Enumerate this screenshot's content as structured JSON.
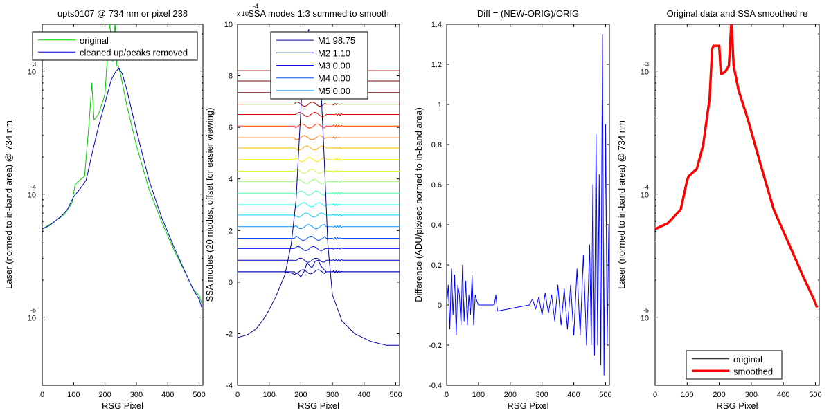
{
  "chart_data": [
    {
      "type": "line",
      "title": "upts0107 @ 734 nm or pixel 238",
      "xlabel": "RSG Pixel",
      "ylabel": "Laser (normed to in-band area) @ 734 nm",
      "xlim": [
        0,
        512
      ],
      "ylim": [
        2.8e-06,
        0.0024
      ],
      "yscale": "log",
      "x_ticks": [
        0,
        100,
        200,
        300,
        400,
        500
      ],
      "y_ticks": [
        {
          "value": 1e-05,
          "base": "10",
          "exp": "-5"
        },
        {
          "value": 0.0001,
          "base": "10",
          "exp": "-4"
        },
        {
          "value": 0.001,
          "base": "10",
          "exp": "-3"
        }
      ],
      "legend": {
        "position": "top",
        "entries": [
          "original",
          "cleaned up/peaks removed"
        ]
      },
      "series": [
        {
          "name": "original",
          "color": "#00cc00",
          "x": [
            0,
            40,
            70,
            95,
            105,
            120,
            135,
            150,
            158,
            165,
            180,
            200,
            215,
            225,
            232,
            238,
            242,
            250,
            270,
            300,
            340,
            380,
            420,
            460,
            480,
            500,
            508
          ],
          "y": [
            5.2e-05,
            6e-05,
            6.8e-05,
            8.5e-05,
            0.00012,
            0.00013,
            0.00014,
            0.0004,
            0.0008,
            0.0004,
            0.00045,
            0.00065,
            0.0025,
            0.0012,
            0.0025,
            0.0011,
            0.0011,
            0.00093,
            0.00052,
            0.00025,
            0.00011,
            6e-05,
            3.5e-05,
            2.2e-05,
            1.7e-05,
            1.5e-05,
            1.3e-05
          ]
        },
        {
          "name": "cleaned up/peaks removed",
          "color": "#0000cc",
          "x": [
            0,
            20,
            40,
            60,
            80,
            100,
            120,
            140,
            160,
            180,
            200,
            220,
            235,
            245,
            255,
            270,
            300,
            340,
            380,
            420,
            460,
            480,
            500,
            508
          ],
          "y": [
            5.2e-05,
            5.5e-05,
            6e-05,
            6.6e-05,
            7.5e-05,
            9.5e-05,
            0.00011,
            0.00013,
            0.00022,
            0.00036,
            0.00055,
            0.00085,
            0.001,
            0.00105,
            0.00095,
            0.0007,
            0.00033,
            0.00013,
            6.5e-05,
            3.7e-05,
            2.2e-05,
            1.7e-05,
            1.4e-05,
            1.2e-05
          ]
        }
      ]
    },
    {
      "type": "line",
      "title": "SSA modes 1:3 summed to smooth",
      "scale_label": {
        "base": "x 10",
        "exp": "-4"
      },
      "xlabel": "RSG Pixel",
      "ylabel": "SSA modes (20 modes, offset for easier viewing)",
      "xlim": [
        0,
        512
      ],
      "ylim": [
        -4,
        10
      ],
      "x_ticks": [
        0,
        100,
        200,
        300,
        400,
        500
      ],
      "y_ticks": [
        -4,
        -2,
        0,
        2,
        4,
        6,
        8,
        10
      ],
      "legend": {
        "position": "top",
        "entries": [
          "M1 98.75",
          "M2 1.10",
          "M3 0.00",
          "M4 0.00",
          "M5 0.00"
        ]
      },
      "mode_colors": [
        "#00008f",
        "#0000cc",
        "#0010ff",
        "#0050ff",
        "#0090ff",
        "#00d0ff",
        "#10ffef",
        "#50ffaf",
        "#90ff6f",
        "#d0ff2f",
        "#ffef00",
        "#ffb000",
        "#ff7000",
        "#ff3000",
        "#ef0000",
        "#af0000",
        "#800000",
        "#800000",
        "#800000"
      ],
      "mode_offsets": [
        0.4,
        0.85,
        1.3,
        1.7,
        2.15,
        2.6,
        3.0,
        3.45,
        3.9,
        4.3,
        4.75,
        5.2,
        5.6,
        6.05,
        6.5,
        6.9,
        7.35,
        7.8,
        8.2
      ],
      "series": [
        {
          "name": "M1 98.75",
          "color": "#00008f",
          "x": [
            0,
            30,
            60,
            90,
            120,
            150,
            170,
            185,
            195,
            205,
            215,
            225,
            235,
            245,
            255,
            265,
            275,
            285,
            300,
            330,
            370,
            420,
            470,
            510
          ],
          "y": [
            -2.15,
            -2.05,
            -1.8,
            -1.3,
            -0.6,
            0.3,
            1.5,
            3.2,
            5.5,
            7.8,
            9.3,
            9.8,
            9.6,
            9.0,
            8.5,
            7.2,
            4.5,
            1.5,
            -0.5,
            -1.5,
            -2.0,
            -2.3,
            -2.45,
            -2.45
          ]
        },
        {
          "name": "M2 1.10",
          "color": "#0000cc",
          "x": [
            0,
            100,
            150,
            170,
            180,
            190,
            200,
            210,
            220,
            235,
            245,
            255,
            265,
            280,
            320,
            400,
            510
          ],
          "y": [
            0.4,
            0.4,
            0.4,
            0.35,
            0.3,
            0.35,
            0.2,
            0.4,
            0.75,
            0.55,
            0.8,
            0.85,
            0.6,
            0.4,
            0.4,
            0.4,
            0.4
          ]
        }
      ]
    },
    {
      "type": "line",
      "title": "Diff = (NEW-ORIG)/ORIG",
      "xlabel": "RSG Pixel",
      "ylabel": "Difference (ADU/pix/sec normed to in-band area)",
      "xlim": [
        0,
        512
      ],
      "ylim": [
        -0.4,
        1.4
      ],
      "x_ticks": [
        0,
        100,
        200,
        300,
        400,
        500
      ],
      "y_ticks": [
        -0.4,
        -0.2,
        0,
        0.2,
        0.4,
        0.6,
        0.8,
        1,
        1.2,
        1.4
      ],
      "series": [
        {
          "name": "",
          "color": "#0000ff",
          "x": [
            0,
            5,
            10,
            15,
            20,
            25,
            30,
            35,
            40,
            45,
            50,
            55,
            60,
            65,
            70,
            75,
            80,
            85,
            90,
            95,
            100,
            150,
            155,
            160,
            260,
            270,
            280,
            290,
            300,
            310,
            320,
            330,
            340,
            350,
            360,
            370,
            380,
            390,
            400,
            410,
            420,
            430,
            440,
            450,
            455,
            460,
            465,
            470,
            475,
            480,
            485,
            490,
            495,
            500,
            505,
            510
          ],
          "y": [
            0,
            0.1,
            -0.12,
            0.18,
            -0.05,
            0.15,
            -0.15,
            0.1,
            0.05,
            -0.1,
            0.2,
            -0.08,
            0.12,
            -0.1,
            0.05,
            -0.05,
            0.15,
            -0.1,
            0.05,
            0.02,
            0,
            0,
            0.05,
            -0.03,
            0,
            0.03,
            -0.02,
            0.04,
            -0.05,
            0.06,
            -0.04,
            0.05,
            -0.08,
            0.1,
            -0.1,
            0.08,
            -0.12,
            0.1,
            -0.15,
            0.18,
            -0.15,
            0.25,
            -0.2,
            0.3,
            -0.2,
            0.6,
            -0.25,
            0.85,
            -0.2,
            0.65,
            -0.3,
            1.35,
            -0.35,
            0.9,
            -0.2,
            0.4
          ]
        }
      ]
    },
    {
      "type": "line",
      "title": "Original data and SSA smoothed re",
      "xlabel": "RSG Pixel",
      "ylabel": "Laser (normed to in-band area) @ 734 nm",
      "xlim": [
        0,
        512
      ],
      "ylim": [
        2.8e-06,
        0.0024
      ],
      "yscale": "log",
      "x_ticks": [
        0,
        100,
        200,
        300,
        400,
        500
      ],
      "y_ticks": [
        {
          "value": 1e-05,
          "base": "10",
          "exp": "-5"
        },
        {
          "value": 0.0001,
          "base": "10",
          "exp": "-4"
        },
        {
          "value": 0.001,
          "base": "10",
          "exp": "-3"
        }
      ],
      "legend": {
        "position": "bottom",
        "entries": [
          "original",
          "smoothed"
        ]
      },
      "series": [
        {
          "name": "original",
          "color": "#000000",
          "x": [
            0,
            40,
            80,
            100,
            105,
            130,
            150,
            170,
            178,
            182,
            200,
            205,
            210,
            220,
            230,
            238,
            245,
            260,
            290,
            330,
            370,
            420,
            460,
            480,
            495,
            505
          ],
          "y": [
            5.2e-05,
            5.8e-05,
            7.5e-05,
            0.00013,
            0.00014,
            0.00016,
            0.00025,
            0.0006,
            0.0015,
            0.0016,
            0.0016,
            0.00095,
            0.00095,
            0.001,
            0.0011,
            0.0025,
            0.0011,
            0.0007,
            0.0004,
            0.00017,
            7.5e-05,
            3.8e-05,
            2.2e-05,
            1.7e-05,
            1.4e-05,
            1.2e-05
          ]
        },
        {
          "name": "smoothed",
          "color": "#ff0000",
          "x": [
            0,
            40,
            80,
            100,
            105,
            130,
            150,
            170,
            178,
            182,
            200,
            205,
            210,
            220,
            230,
            238,
            245,
            260,
            290,
            330,
            370,
            420,
            460,
            480,
            495,
            505
          ],
          "y": [
            5.2e-05,
            5.8e-05,
            7.5e-05,
            0.00013,
            0.00014,
            0.00016,
            0.00025,
            0.0006,
            0.0015,
            0.0016,
            0.0016,
            0.00095,
            0.00095,
            0.001,
            0.0011,
            0.0025,
            0.0011,
            0.0007,
            0.0004,
            0.00017,
            7.5e-05,
            3.8e-05,
            2.2e-05,
            1.7e-05,
            1.4e-05,
            1.2e-05
          ]
        }
      ]
    }
  ]
}
